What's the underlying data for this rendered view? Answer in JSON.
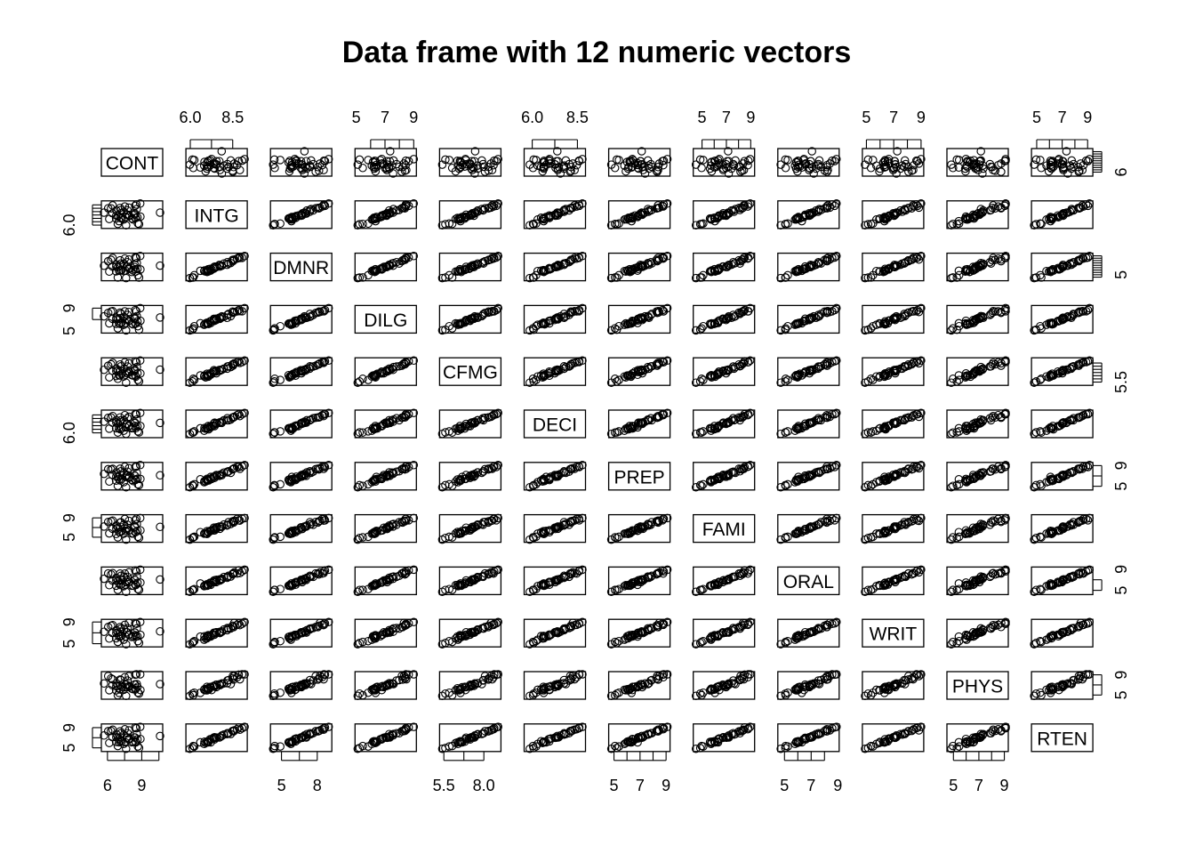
{
  "chart_data": {
    "type": "scatter",
    "subtype": "scatterplot-matrix",
    "title": "Data frame with 12 numeric vectors",
    "variables": [
      "CONT",
      "INTG",
      "DMNR",
      "DILG",
      "CFMG",
      "DECI",
      "PREP",
      "FAMI",
      "ORAL",
      "WRIT",
      "PHYS",
      "RTEN"
    ],
    "ranges": {
      "CONT": [
        5.7,
        10.6
      ],
      "INTG": [
        5.9,
        9.2
      ],
      "DMNR": [
        4.3,
        9.0
      ],
      "DILG": [
        5.1,
        9.0
      ],
      "CFMG": [
        5.4,
        8.9
      ],
      "DECI": [
        5.7,
        8.8
      ],
      "PREP": [
        4.8,
        9.1
      ],
      "FAMI": [
        4.5,
        9.1
      ],
      "ORAL": [
        4.7,
        8.9
      ],
      "WRIT": [
        4.9,
        9.0
      ],
      "PHYS": [
        4.7,
        9.1
      ],
      "RTEN": [
        4.8,
        9.2
      ]
    },
    "axes": {
      "top": [
        {
          "col": 1,
          "label_values": [
            "6.0",
            "8.5"
          ]
        },
        {
          "col": 3,
          "label_values": [
            "5",
            "7",
            "9"
          ]
        },
        {
          "col": 5,
          "label_values": [
            "6.0",
            "8.5"
          ]
        },
        {
          "col": 7,
          "label_values": [
            "5",
            "7",
            "9"
          ]
        },
        {
          "col": 9,
          "label_values": [
            "5",
            "7",
            "9"
          ]
        },
        {
          "col": 11,
          "label_values": [
            "5",
            "7",
            "9"
          ]
        }
      ],
      "bottom": [
        {
          "col": 0,
          "label_values": [
            "6",
            "9"
          ]
        },
        {
          "col": 2,
          "label_values": [
            "5",
            "8"
          ]
        },
        {
          "col": 4,
          "label_values": [
            "5.5",
            "8.0"
          ]
        },
        {
          "col": 6,
          "label_values": [
            "5",
            "7",
            "9"
          ]
        },
        {
          "col": 8,
          "label_values": [
            "5",
            "7",
            "9"
          ]
        },
        {
          "col": 10,
          "label_values": [
            "5",
            "7",
            "9"
          ]
        }
      ],
      "left": [
        {
          "row": 1,
          "label_values": [
            "6.0"
          ]
        },
        {
          "row": 3,
          "label_values": [
            "5",
            "9"
          ]
        },
        {
          "row": 5,
          "label_values": [
            "6.0"
          ]
        },
        {
          "row": 7,
          "label_values": [
            "5",
            "9"
          ]
        },
        {
          "row": 9,
          "label_values": [
            "5",
            "9"
          ]
        },
        {
          "row": 11,
          "label_values": [
            "5",
            "9"
          ]
        }
      ],
      "right": [
        {
          "row": 0,
          "label_values": [
            "6"
          ]
        },
        {
          "row": 2,
          "label_values": [
            "5"
          ]
        },
        {
          "row": 4,
          "label_values": [
            "5.5"
          ]
        },
        {
          "row": 6,
          "label_values": [
            "5",
            "9"
          ]
        },
        {
          "row": 8,
          "label_values": [
            "5",
            "9"
          ]
        },
        {
          "row": 10,
          "label_values": [
            "5",
            "9"
          ]
        }
      ]
    },
    "observations": 43,
    "point_symbol": "open-circle",
    "grid": false,
    "legend": "none"
  }
}
